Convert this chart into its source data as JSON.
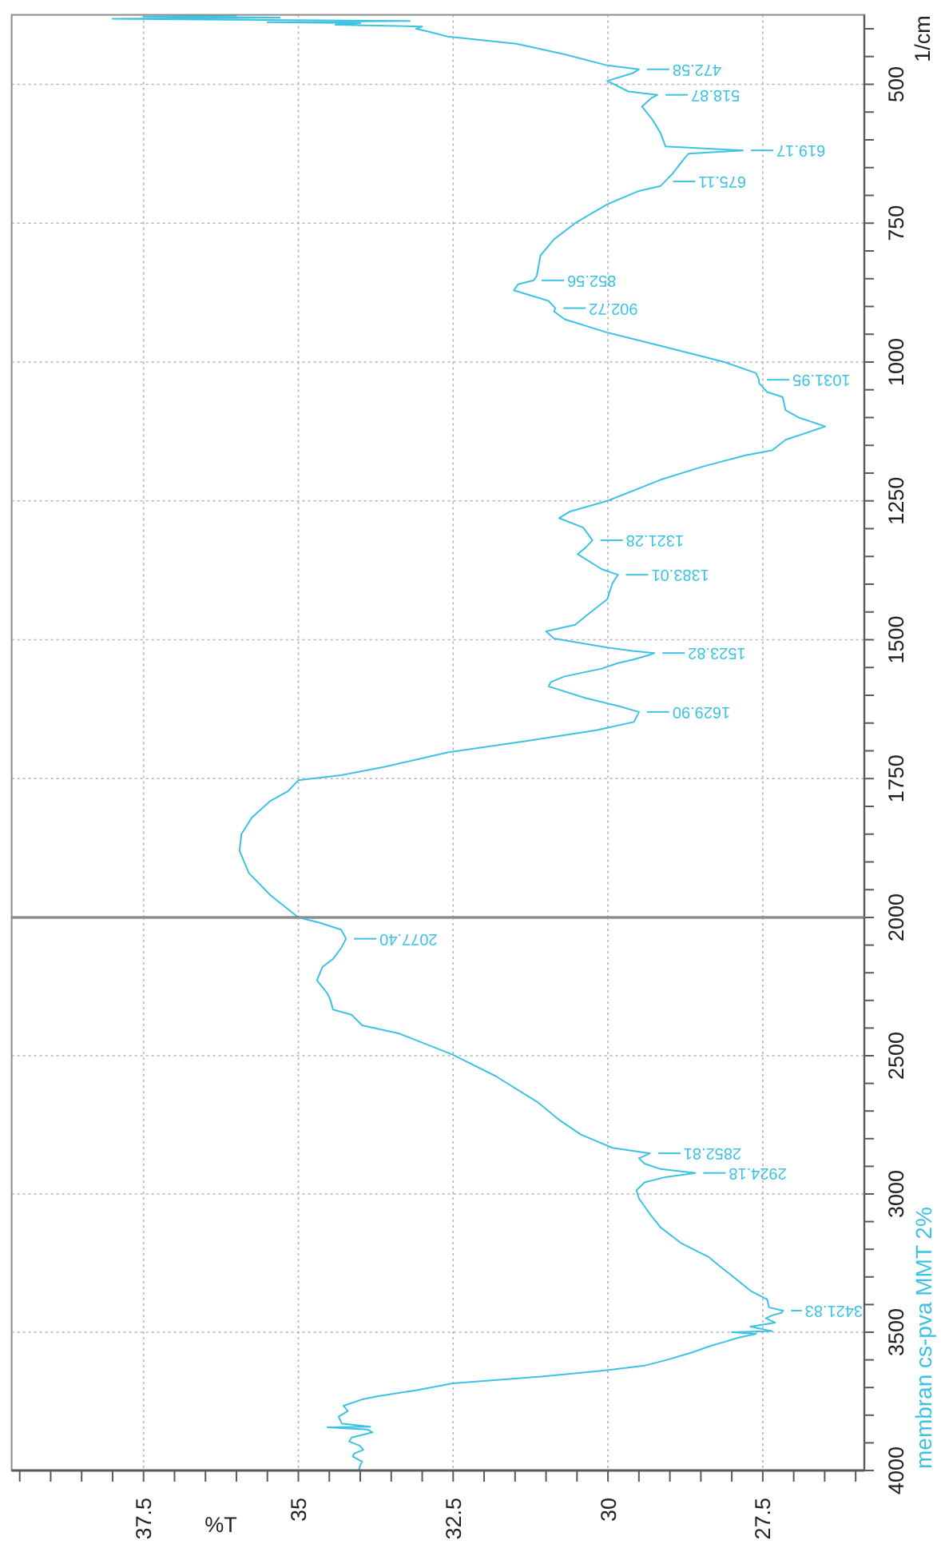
{
  "chart_data": [
    {
      "type": "line",
      "ylabel": "1/cm",
      "series": [
        {
          "color": "#3cc3e3",
          "x": [
            35.0,
            35.45,
            35.8,
            35.95,
            35.92,
            35.75,
            35.45,
            35.17,
            35.0,
            34.31,
            33.62,
            32.59,
            31.3,
            30.19,
            29.58,
            29.5,
            29.84,
            30.36,
            30.96,
            30.92,
            30.7,
            30.1,
            29.84,
            29.6,
            29.35,
            29.25,
            29.6,
            30.01,
            30.87,
            31.0,
            30.53,
            30.23,
            30.01,
            29.93,
            29.84,
            30.1,
            30.49,
            30.36,
            30.25,
            30.4,
            30.79,
            30.61,
            30.01,
            29.15,
            28.46,
            27.78,
            27.35,
            27.13,
            26.49,
            26.92,
            27.13,
            27.18,
            27.43,
            27.56,
            27.56,
            27.61,
            28.12,
            29.15,
            30.01,
            30.7,
            30.87,
            30.85,
            30.96,
            31.52,
            31.45,
            31.2,
            31.15,
            31.09,
            30.87,
            30.53,
            30.01,
            29.5,
            29.15,
            29.08,
            28.95,
            28.77,
            28.7,
            27.82,
            29.07,
            29.15,
            29.28,
            29.45,
            29.3,
            29.2,
            29.67,
            30.01,
            29.6,
            29.5,
            30.01,
            30.7,
            31.48,
            32.59,
            32.9,
            33.1,
            33.0,
            34.4,
            34.0,
            35.5,
            33.2,
            36.0,
            38.0,
            35.3,
            37.5,
            36.0
          ],
          "values": [
            2000,
            1960,
            1920,
            1880,
            1850,
            1820,
            1790,
            1773,
            1753,
            1744,
            1729,
            1703,
            1682,
            1663,
            1648,
            1630,
            1619,
            1605,
            1584,
            1576,
            1566,
            1552,
            1542,
            1536,
            1528,
            1524,
            1520,
            1514,
            1498,
            1485,
            1473,
            1446,
            1427,
            1399,
            1383,
            1373,
            1346,
            1334,
            1321,
            1298,
            1281,
            1269,
            1250,
            1212,
            1188,
            1168,
            1159,
            1140,
            1116,
            1100,
            1087,
            1063,
            1054,
            1038,
            1032,
            1020,
            1000,
            971,
            947,
            923,
            909,
            903,
            890,
            871,
            860,
            853,
            845,
            808,
            779,
            750,
            716,
            692,
            683,
            675,
            660,
            634,
            625,
            619,
            612,
            588,
            564,
            540,
            525,
            519,
            513,
            494,
            480,
            473,
            466,
            446,
            427,
            414,
            405,
            400,
            396,
            393,
            390,
            388,
            386,
            384,
            382,
            380,
            378,
            376
          ]
        }
      ],
      "xlim": [
        39.63,
        25.86
      ],
      "xticks": [
        37.5,
        35,
        32.5,
        30,
        27.5
      ],
      "ylim": [
        2000,
        375
      ],
      "yticks": [
        2000,
        {
          "value": 1950,
          "label": null
        },
        {
          "value": 1900,
          "label": null
        },
        {
          "value": 1850,
          "label": null
        },
        {
          "value": 1800,
          "label": null
        },
        1750,
        {
          "value": 1700,
          "label": null
        },
        {
          "value": 1650,
          "label": null
        },
        {
          "value": 1600,
          "label": null
        },
        {
          "value": 1550,
          "label": null
        },
        1500,
        {
          "value": 1450,
          "label": null
        },
        {
          "value": 1400,
          "label": null
        },
        {
          "value": 1350,
          "label": null
        },
        {
          "value": 1300,
          "label": null
        },
        1250,
        {
          "value": 1200,
          "label": null
        },
        {
          "value": 1150,
          "label": null
        },
        {
          "value": 1100,
          "label": null
        },
        {
          "value": 1050,
          "label": null
        },
        1000,
        {
          "value": 950,
          "label": null
        },
        {
          "value": 900,
          "label": null
        },
        {
          "value": 850,
          "label": null
        },
        {
          "value": 800,
          "label": null
        },
        750,
        {
          "value": 700,
          "label": null
        },
        {
          "value": 650,
          "label": null
        },
        {
          "value": 600,
          "label": null
        },
        {
          "value": 550,
          "label": null
        },
        500,
        {
          "value": 450,
          "label": null
        },
        {
          "value": 400,
          "label": null
        }
      ],
      "tick_labels": "y",
      "grid": true,
      "annotations": [
        {
          "text": "472.58",
          "x": 29.5,
          "y": 473
        },
        {
          "text": "518.87",
          "x": 29.2,
          "y": 519
        },
        {
          "text": "619.17",
          "x": 27.82,
          "y": 619
        },
        {
          "text": "675.11",
          "x": 29.08,
          "y": 675
        },
        {
          "text": "852.56",
          "x": 31.2,
          "y": 853
        },
        {
          "text": "902.72",
          "x": 30.85,
          "y": 903
        },
        {
          "text": "1031.95",
          "x": 27.56,
          "y": 1032
        },
        {
          "text": "1321.28",
          "x": 30.25,
          "y": 1321
        },
        {
          "text": "1383.01",
          "x": 29.84,
          "y": 1383
        },
        {
          "text": "1523.82",
          "x": 29.25,
          "y": 1524
        },
        {
          "text": "1629.90",
          "x": 29.5,
          "y": 1630
        }
      ]
    },
    {
      "type": "line",
      "xlabel": "%T",
      "series": [
        {
          "name": "membran cs-pva MMT 2%",
          "color": "#3cc3e3",
          "x": [
            34.02,
            34.01,
            33.97,
            34.12,
            34.1,
            33.95,
            34.01,
            34.18,
            34.14,
            33.8,
            33.88,
            34.53,
            33.84,
            34.3,
            34.35,
            34.2,
            34.27,
            33.97,
            33.71,
            33.1,
            32.51,
            31.04,
            30.01,
            29.41,
            29.05,
            28.64,
            28.35,
            28.12,
            27.9,
            27.61,
            28.0,
            27.35,
            27.7,
            27.3,
            27.45,
            27.35,
            27.2,
            27.17,
            27.4,
            27.43,
            27.7,
            27.95,
            28.2,
            28.38,
            28.81,
            29.15,
            29.32,
            29.5,
            29.54,
            29.41,
            29.07,
            28.59,
            29.15,
            29.41,
            29.5,
            29.32,
            29.93,
            30.44,
            30.8,
            31.13,
            31.82,
            32.51,
            33.37,
            33.97,
            34.14,
            34.44,
            34.48,
            34.53,
            34.7,
            34.61,
            34.44,
            34.31,
            34.23,
            34.31,
            34.66,
            35.0
          ],
          "values": [
            3998,
            3987,
            3968,
            3950,
            3939,
            3925,
            3910,
            3895,
            3881,
            3862,
            3852,
            3844,
            3842,
            3830,
            3805,
            3785,
            3766,
            3743,
            3731,
            3710,
            3685,
            3660,
            3637,
            3621,
            3600,
            3573,
            3550,
            3535,
            3520,
            3506,
            3500,
            3496,
            3480,
            3465,
            3450,
            3439,
            3430,
            3422,
            3410,
            3381,
            3350,
            3304,
            3260,
            3227,
            3179,
            3121,
            3073,
            3016,
            2987,
            2958,
            2939,
            2924,
            2910,
            2890,
            2871,
            2853,
            2833,
            2785,
            2730,
            2669,
            2573,
            2496,
            2420,
            2390,
            2352,
            2333,
            2300,
            2275,
            2227,
            2179,
            2150,
            2111,
            2077,
            2044,
            2019,
            2000
          ]
        }
      ],
      "xlim": [
        39.63,
        25.86
      ],
      "xticks": [
        {
          "value": 39.5,
          "label": null
        },
        {
          "value": 39,
          "label": null
        },
        {
          "value": 38.5,
          "label": null
        },
        {
          "value": 38,
          "label": null
        },
        37.5,
        {
          "value": 37,
          "label": null
        },
        {
          "value": 36.5,
          "label": null
        },
        {
          "value": 36,
          "label": null
        },
        {
          "value": 35.5,
          "label": null
        },
        35,
        {
          "value": 34.5,
          "label": null
        },
        {
          "value": 34,
          "label": null
        },
        {
          "value": 33.5,
          "label": null
        },
        {
          "value": 33,
          "label": null
        },
        32.5,
        {
          "value": 32,
          "label": null
        },
        {
          "value": 31.5,
          "label": null
        },
        {
          "value": 31,
          "label": null
        },
        {
          "value": 30.5,
          "label": null
        },
        30,
        {
          "value": 29.5,
          "label": null
        },
        {
          "value": 29,
          "label": null
        },
        {
          "value": 28.5,
          "label": null
        },
        {
          "value": 28,
          "label": null
        },
        27.5,
        {
          "value": 27,
          "label": null
        },
        {
          "value": 26.5,
          "label": null
        },
        {
          "value": 26,
          "label": null
        }
      ],
      "ylim": [
        4000,
        2000
      ],
      "yticks": [
        4000,
        {
          "value": 3900,
          "label": null
        },
        {
          "value": 3800,
          "label": null
        },
        {
          "value": 3700,
          "label": null
        },
        {
          "value": 3600,
          "label": null
        },
        3500,
        {
          "value": 3400,
          "label": null
        },
        {
          "value": 3300,
          "label": null
        },
        {
          "value": 3200,
          "label": null
        },
        {
          "value": 3100,
          "label": null
        },
        3000,
        {
          "value": 2900,
          "label": null
        },
        {
          "value": 2800,
          "label": null
        },
        {
          "value": 2700,
          "label": null
        },
        {
          "value": 2600,
          "label": null
        },
        2500,
        {
          "value": 2400,
          "label": null
        },
        {
          "value": 2300,
          "label": null
        },
        {
          "value": 2200,
          "label": null
        },
        {
          "value": 2100,
          "label": null
        }
      ],
      "grid": true,
      "legend": "bottom right",
      "annotations": [
        {
          "text": "2077.40",
          "x": 34.23,
          "y": 2077
        },
        {
          "text": "2852.81",
          "x": 29.32,
          "y": 2853
        },
        {
          "text": "2924.18",
          "x": 28.59,
          "y": 2924
        },
        {
          "text": "3421.83",
          "x": 27.17,
          "y": 3422
        }
      ]
    }
  ]
}
